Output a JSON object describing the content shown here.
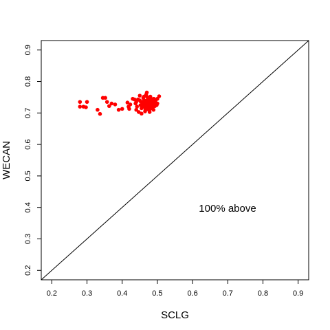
{
  "chart_data": {
    "type": "scatter",
    "xlabel": "SCLG",
    "ylabel": "WECAN",
    "xlim": [
      0.17,
      0.93
    ],
    "ylim": [
      0.17,
      0.93
    ],
    "x_ticks": [
      0.2,
      0.3,
      0.4,
      0.5,
      0.6,
      0.7,
      0.8,
      0.9
    ],
    "y_ticks": [
      0.2,
      0.3,
      0.4,
      0.5,
      0.6,
      0.7,
      0.8,
      0.9
    ],
    "x_tick_labels": [
      "0.2",
      "0.3",
      "0.4",
      "0.5",
      "0.6",
      "0.7",
      "0.8",
      "0.9"
    ],
    "y_tick_labels": [
      "0.2",
      "0.3",
      "0.4",
      "0.5",
      "0.6",
      "0.7",
      "0.8",
      "0.9"
    ],
    "reference_line": {
      "from": [
        0.17,
        0.17
      ],
      "to": [
        0.93,
        0.93
      ],
      "color": "#000000"
    },
    "annotation": {
      "text": "100% above",
      "x": 0.69,
      "y": 0.39
    },
    "point_color": "#ff0000",
    "grid": false,
    "series": [
      {
        "values": [
          [
            0.28,
            0.735
          ],
          [
            0.28,
            0.72
          ],
          [
            0.29,
            0.72
          ],
          [
            0.297,
            0.718
          ],
          [
            0.3,
            0.735
          ],
          [
            0.33,
            0.71
          ],
          [
            0.337,
            0.697
          ],
          [
            0.345,
            0.748
          ],
          [
            0.352,
            0.748
          ],
          [
            0.357,
            0.735
          ],
          [
            0.363,
            0.722
          ],
          [
            0.37,
            0.73
          ],
          [
            0.38,
            0.727
          ],
          [
            0.39,
            0.71
          ],
          [
            0.4,
            0.713
          ],
          [
            0.415,
            0.733
          ],
          [
            0.418,
            0.72
          ],
          [
            0.42,
            0.713
          ],
          [
            0.423,
            0.727
          ],
          [
            0.43,
            0.745
          ],
          [
            0.435,
            0.743
          ],
          [
            0.44,
            0.735
          ],
          [
            0.445,
            0.743
          ],
          [
            0.447,
            0.703
          ],
          [
            0.45,
            0.74
          ],
          [
            0.452,
            0.725
          ],
          [
            0.455,
            0.715
          ],
          [
            0.457,
            0.732
          ],
          [
            0.46,
            0.748
          ],
          [
            0.462,
            0.74
          ],
          [
            0.463,
            0.72
          ],
          [
            0.465,
            0.705
          ],
          [
            0.467,
            0.728
          ],
          [
            0.468,
            0.758
          ],
          [
            0.47,
            0.765
          ],
          [
            0.47,
            0.74
          ],
          [
            0.472,
            0.712
          ],
          [
            0.473,
            0.725
          ],
          [
            0.474,
            0.733
          ],
          [
            0.475,
            0.745
          ],
          [
            0.476,
            0.718
          ],
          [
            0.477,
            0.73
          ],
          [
            0.478,
            0.703
          ],
          [
            0.479,
            0.722
          ],
          [
            0.48,
            0.752
          ],
          [
            0.481,
            0.737
          ],
          [
            0.482,
            0.727
          ],
          [
            0.483,
            0.715
          ],
          [
            0.484,
            0.732
          ],
          [
            0.485,
            0.741
          ],
          [
            0.486,
            0.72
          ],
          [
            0.487,
            0.728
          ],
          [
            0.488,
            0.735
          ],
          [
            0.489,
            0.71
          ],
          [
            0.49,
            0.745
          ],
          [
            0.46,
            0.73
          ],
          [
            0.465,
            0.735
          ],
          [
            0.468,
            0.72
          ],
          [
            0.471,
            0.728
          ],
          [
            0.474,
            0.74
          ],
          [
            0.476,
            0.725
          ],
          [
            0.479,
            0.733
          ],
          [
            0.481,
            0.722
          ],
          [
            0.484,
            0.738
          ],
          [
            0.486,
            0.73
          ],
          [
            0.458,
            0.722
          ],
          [
            0.462,
            0.727
          ],
          [
            0.467,
            0.733
          ],
          [
            0.47,
            0.718
          ],
          [
            0.473,
            0.735
          ],
          [
            0.475,
            0.728
          ],
          [
            0.478,
            0.74
          ],
          [
            0.48,
            0.73
          ],
          [
            0.483,
            0.725
          ],
          [
            0.485,
            0.735
          ],
          [
            0.49,
            0.727
          ],
          [
            0.492,
            0.735
          ],
          [
            0.495,
            0.74
          ],
          [
            0.498,
            0.725
          ],
          [
            0.5,
            0.745
          ],
          [
            0.505,
            0.753
          ],
          [
            0.5,
            0.73
          ],
          [
            0.455,
            0.698
          ],
          [
            0.44,
            0.71
          ],
          [
            0.45,
            0.755
          ],
          [
            0.442,
            0.72
          ],
          [
            0.438,
            0.73
          ],
          [
            0.452,
            0.737
          ],
          [
            0.466,
            0.712
          ],
          [
            0.477,
            0.708
          ],
          [
            0.483,
            0.745
          ],
          [
            0.487,
            0.718
          ],
          [
            0.493,
            0.722
          ],
          [
            0.472,
            0.75
          ],
          [
            0.462,
            0.752
          ]
        ]
      }
    ]
  }
}
